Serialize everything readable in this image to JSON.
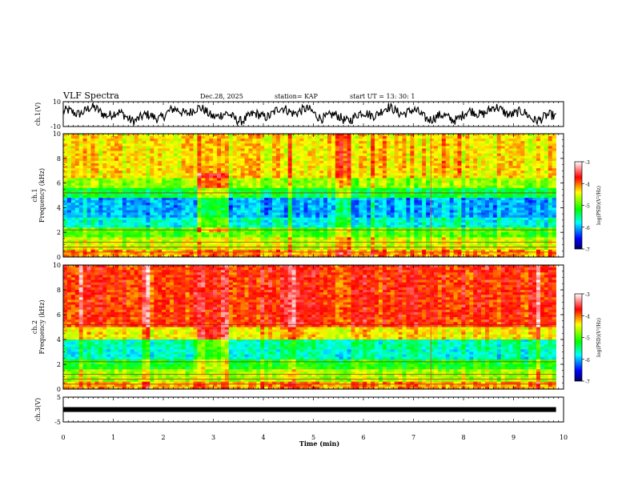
{
  "header": {
    "title": "VLF Spectra",
    "date": "Dec.28, 2025",
    "station": "station= KAP",
    "start": "start  UT  =  13: 30: 1"
  },
  "chart_data": [
    {
      "type": "line",
      "name": "waveform-ch1",
      "ylabel": "ch.1(V)",
      "ylim": [
        -10,
        10
      ],
      "yticks": [
        "10",
        "-10"
      ],
      "xlim": [
        0,
        10
      ],
      "x_extent": 9.85
    },
    {
      "type": "heatmap",
      "name": "spectrogram-ch1",
      "ylabel": "ch.1\nFrequency (kHz)",
      "ylim": [
        0,
        10
      ],
      "yticks": [
        "0",
        "2",
        "4",
        "6",
        "8",
        "10"
      ],
      "xlim": [
        0,
        10
      ],
      "x_extent": 9.85,
      "colorbar": {
        "label": "log(PSD)(V²/Hz)",
        "ticks": [
          "-3",
          "-4",
          "-5",
          "-6",
          "-7"
        ],
        "range": [
          -7,
          -3
        ]
      }
    },
    {
      "type": "heatmap",
      "name": "spectrogram-ch2",
      "ylabel": "ch.2\nFrequency (kHz)",
      "ylim": [
        0,
        10
      ],
      "yticks": [
        "0",
        "2",
        "4",
        "6",
        "8",
        "10"
      ],
      "xlim": [
        0,
        10
      ],
      "x_extent": 9.85,
      "colorbar": {
        "label": "log(PSD)(V²/Hz)",
        "ticks": [
          "-3",
          "-4",
          "-5",
          "-6",
          "-7"
        ],
        "range": [
          -7,
          -3
        ]
      }
    },
    {
      "type": "line",
      "name": "waveform-ch3",
      "ylabel": "ch.3(V)",
      "ylim": [
        -5,
        5
      ],
      "yticks": [
        "5",
        "-5"
      ],
      "xlim": [
        0,
        10
      ],
      "x_extent": 9.85,
      "level": 0
    }
  ],
  "xaxis": {
    "label": "Time  (min)",
    "ticks": [
      "0",
      "1",
      "2",
      "3",
      "4",
      "5",
      "6",
      "7",
      "8",
      "9",
      "10"
    ]
  }
}
